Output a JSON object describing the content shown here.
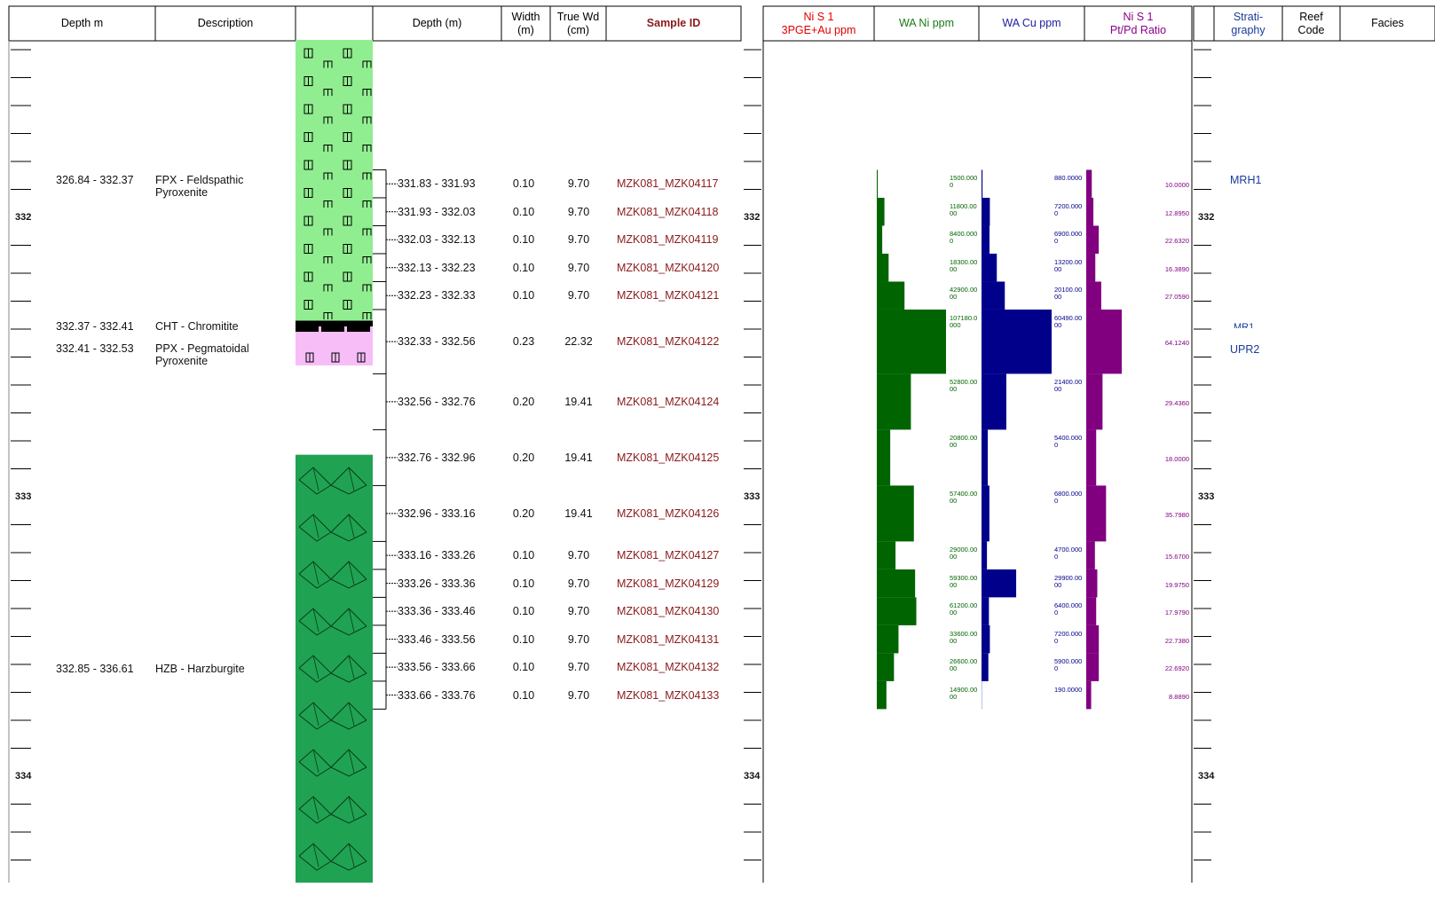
{
  "header": {
    "depth_m": "Depth m",
    "description": "Description",
    "sample_depth": "Depth (m)",
    "width": "Width\n(m)",
    "true_width": "True Wd\n(cm)",
    "sample_id": "Sample ID",
    "pge": "Ni S 1\n3PGE+Au ppm",
    "ni": "WA Ni ppm",
    "cu": "WA Cu ppm",
    "ratio": "Ni S 1\nPt/Pd Ratio",
    "stratigraphy": "Strati-\ngraphy",
    "reef_code": "Reef\nCode",
    "facies": "Facies"
  },
  "depth_axis": {
    "ylim": [
      331.365,
      334.381
    ],
    "major_ticks": [
      332,
      333,
      334
    ],
    "minor_ticks": [
      331.4,
      331.5,
      331.6,
      331.7,
      331.8,
      331.9,
      332.1,
      332.2,
      332.3,
      332.4,
      332.5,
      332.6,
      332.7,
      332.8,
      332.9,
      333.1,
      333.2,
      333.3,
      333.4,
      333.5,
      333.6,
      333.7,
      333.8,
      333.9,
      334.1,
      334.2,
      334.3
    ]
  },
  "lithology": [
    {
      "depth": "326.84 - 332.37",
      "from": 326.84,
      "to": 332.37,
      "description": "FPX - Feldspathic Pyroxenite",
      "color": "#90ee90"
    },
    {
      "depth": "332.37 - 332.41",
      "from": 332.37,
      "to": 332.41,
      "description": "CHT - Chromitite",
      "color": "#000000"
    },
    {
      "depth": "332.41 - 332.53",
      "from": 332.41,
      "to": 332.53,
      "description": "PPX - Pegmatoidal Pyroxenite",
      "color": "#f7bdf7"
    },
    {
      "depth": "332.85 - 336.61",
      "from": 332.85,
      "to": 336.61,
      "description": "HZB - Harzburgite",
      "color": "#1fa352"
    }
  ],
  "samples": [
    {
      "depth": "331.83 - 331.93",
      "from": 331.83,
      "to": 331.93,
      "width": "0.10",
      "true_width": "9.70",
      "id": "MZK081_MZK04117",
      "ni": 1500,
      "ni_label": "1500.0000",
      "cu": 880,
      "cu_label": "880.0000",
      "ratio": 10,
      "ratio_label": "10.0000"
    },
    {
      "depth": "331.93 - 332.03",
      "from": 331.93,
      "to": 332.03,
      "width": "0.10",
      "true_width": "9.70",
      "id": "MZK081_MZK04118",
      "ni": 11800,
      "ni_label": "11800.0000",
      "cu": 7200,
      "cu_label": "7200.0000",
      "ratio": 12.895,
      "ratio_label": "12.8950"
    },
    {
      "depth": "332.03 - 332.13",
      "from": 332.03,
      "to": 332.13,
      "width": "0.10",
      "true_width": "9.70",
      "id": "MZK081_MZK04119",
      "ni": 8400,
      "ni_label": "8400.0000",
      "cu": 6900,
      "cu_label": "6900.0000",
      "ratio": 22.632,
      "ratio_label": "22.6320"
    },
    {
      "depth": "332.13 - 332.23",
      "from": 332.13,
      "to": 332.23,
      "width": "0.10",
      "true_width": "9.70",
      "id": "MZK081_MZK04120",
      "ni": 18300,
      "ni_label": "18300.0000",
      "cu": 13200,
      "cu_label": "13200.0000",
      "ratio": 16.389,
      "ratio_label": "16.3890"
    },
    {
      "depth": "332.23 - 332.33",
      "from": 332.23,
      "to": 332.33,
      "width": "0.10",
      "true_width": "9.70",
      "id": "MZK081_MZK04121",
      "ni": 42900,
      "ni_label": "42900.0000",
      "cu": 20100,
      "cu_label": "20100.0000",
      "ratio": 27.059,
      "ratio_label": "27.0590"
    },
    {
      "depth": "332.33 - 332.56",
      "from": 332.33,
      "to": 332.56,
      "width": "0.23",
      "true_width": "22.32",
      "id": "MZK081_MZK04122",
      "ni": 107180,
      "ni_label": "107180.0000",
      "cu": 60490,
      "cu_label": "60490.0000",
      "ratio": 64.124,
      "ratio_label": "64.1240"
    },
    {
      "depth": "332.56 - 332.76",
      "from": 332.56,
      "to": 332.76,
      "width": "0.20",
      "true_width": "19.41",
      "id": "MZK081_MZK04124",
      "ni": 52800,
      "ni_label": "52800.0000",
      "cu": 21400,
      "cu_label": "21400.0000",
      "ratio": 29.436,
      "ratio_label": "29.4360"
    },
    {
      "depth": "332.76 - 332.96",
      "from": 332.76,
      "to": 332.96,
      "width": "0.20",
      "true_width": "19.41",
      "id": "MZK081_MZK04125",
      "ni": 20800,
      "ni_label": "20800.0000",
      "cu": 5400,
      "cu_label": "5400.0000",
      "ratio": 18,
      "ratio_label": "18.0000"
    },
    {
      "depth": "332.96 - 333.16",
      "from": 332.96,
      "to": 333.16,
      "width": "0.20",
      "true_width": "19.41",
      "id": "MZK081_MZK04126",
      "ni": 57400,
      "ni_label": "57400.0000",
      "cu": 6800,
      "cu_label": "6800.0000",
      "ratio": 35.798,
      "ratio_label": "35.7980"
    },
    {
      "depth": "333.16 - 333.26",
      "from": 333.16,
      "to": 333.26,
      "width": "0.10",
      "true_width": "9.70",
      "id": "MZK081_MZK04127",
      "ni": 29000,
      "ni_label": "29000.0000",
      "cu": 4700,
      "cu_label": "4700.0000",
      "ratio": 15.67,
      "ratio_label": "15.6700"
    },
    {
      "depth": "333.26 - 333.36",
      "from": 333.26,
      "to": 333.36,
      "width": "0.10",
      "true_width": "9.70",
      "id": "MZK081_MZK04129",
      "ni": 59300,
      "ni_label": "59300.0000",
      "cu": 29900,
      "cu_label": "29900.0000",
      "ratio": 19.975,
      "ratio_label": "19.9750"
    },
    {
      "depth": "333.36 - 333.46",
      "from": 333.36,
      "to": 333.46,
      "width": "0.10",
      "true_width": "9.70",
      "id": "MZK081_MZK04130",
      "ni": 61200,
      "ni_label": "61200.0000",
      "cu": 6400,
      "cu_label": "6400.0000",
      "ratio": 17.979,
      "ratio_label": "17.9790"
    },
    {
      "depth": "333.46 - 333.56",
      "from": 333.46,
      "to": 333.56,
      "width": "0.10",
      "true_width": "9.70",
      "id": "MZK081_MZK04131",
      "ni": 33600,
      "ni_label": "33600.0000",
      "cu": 7200,
      "cu_label": "7200.0000",
      "ratio": 22.738,
      "ratio_label": "22.7380"
    },
    {
      "depth": "333.56 - 333.66",
      "from": 333.56,
      "to": 333.66,
      "width": "0.10",
      "true_width": "9.70",
      "id": "MZK081_MZK04132",
      "ni": 26600,
      "ni_label": "26600.0000",
      "cu": 5900,
      "cu_label": "5900.0000",
      "ratio": 22.692,
      "ratio_label": "22.6920"
    },
    {
      "depth": "333.66 - 333.76",
      "from": 333.66,
      "to": 333.76,
      "width": "0.10",
      "true_width": "9.70",
      "id": "MZK081_MZK04133",
      "ni": 14900,
      "ni_label": "14900.0000",
      "cu": 190,
      "cu_label": "190.0000",
      "ratio": 8.889,
      "ratio_label": "8.8890"
    }
  ],
  "colors": {
    "ni": "#006400",
    "cu": "#00008b",
    "ratio": "#800080"
  },
  "stratigraphy": [
    "MRH1",
    "MR1",
    "UPR2"
  ]
}
